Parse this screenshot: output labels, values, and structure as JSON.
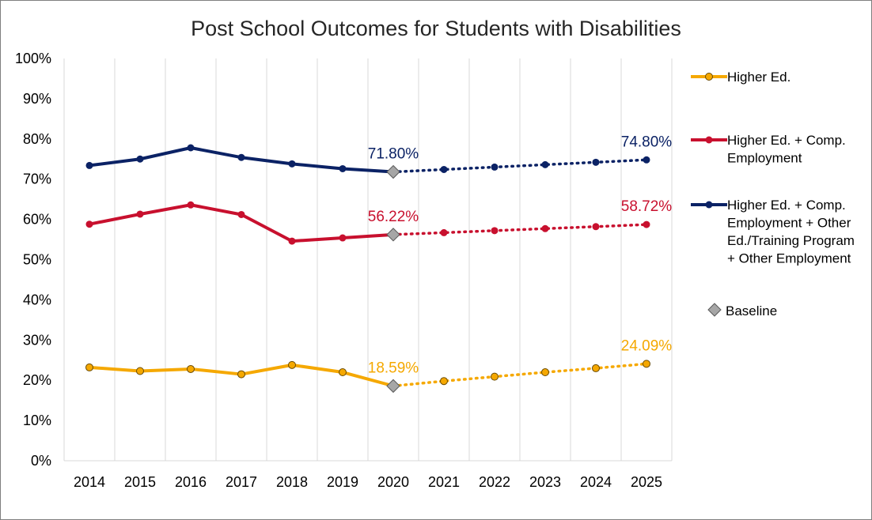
{
  "chart_data": {
    "type": "line",
    "title": "Post School Outcomes for Students with Disabilities",
    "x": [
      2014,
      2015,
      2016,
      2017,
      2018,
      2019,
      2020,
      2021,
      2022,
      2023,
      2024,
      2025
    ],
    "y_ticks": [
      "0%",
      "10%",
      "20%",
      "30%",
      "40%",
      "50%",
      "60%",
      "70%",
      "80%",
      "90%",
      "100%"
    ],
    "ylim": [
      0,
      100
    ],
    "grid": "vertical",
    "legend_position": "right",
    "series": [
      {
        "name": "Higher Ed.",
        "color": "#F5A800",
        "actual": [
          23.2,
          22.3,
          22.8,
          21.5,
          23.8,
          22.0,
          18.59
        ],
        "target": [
          18.59,
          19.8,
          20.9,
          22.0,
          23.0,
          24.09
        ]
      },
      {
        "name": "Higher Ed. + Comp. Employment",
        "color": "#C8102E",
        "actual": [
          58.8,
          61.3,
          63.6,
          61.2,
          54.6,
          55.4,
          56.22
        ],
        "target": [
          56.22,
          56.7,
          57.2,
          57.7,
          58.2,
          58.72
        ]
      },
      {
        "name": "Higher Ed. + Comp. Employment + Other Ed./Training Program + Other Employment",
        "color": "#0B2265",
        "actual": [
          73.4,
          75.0,
          77.8,
          75.4,
          73.8,
          72.6,
          71.8
        ],
        "target": [
          71.8,
          72.4,
          73.0,
          73.6,
          74.2,
          74.8
        ]
      }
    ],
    "baseline": {
      "name": "Baseline",
      "year": 2020,
      "color": "#A6A6A6"
    },
    "data_labels": [
      {
        "series": 2,
        "year": 2020,
        "value": 71.8,
        "text": "71.80%"
      },
      {
        "series": 2,
        "year": 2025,
        "value": 74.8,
        "text": "74.80%"
      },
      {
        "series": 1,
        "year": 2020,
        "value": 56.22,
        "text": "56.22%"
      },
      {
        "series": 1,
        "year": 2025,
        "value": 58.72,
        "text": "58.72%"
      },
      {
        "series": 0,
        "year": 2020,
        "value": 18.59,
        "text": "18.59%"
      },
      {
        "series": 0,
        "year": 2025,
        "value": 24.09,
        "text": "24.09%"
      }
    ],
    "legend": [
      {
        "series": 0,
        "lines": [
          "Higher Ed."
        ]
      },
      {
        "series": 1,
        "lines": [
          "Higher Ed. + Comp.",
          "Employment"
        ]
      },
      {
        "series": 2,
        "lines": [
          "Higher Ed. + Comp.",
          "Employment + Other",
          "Ed./Training Program",
          "+ Other Employment"
        ]
      }
    ]
  }
}
